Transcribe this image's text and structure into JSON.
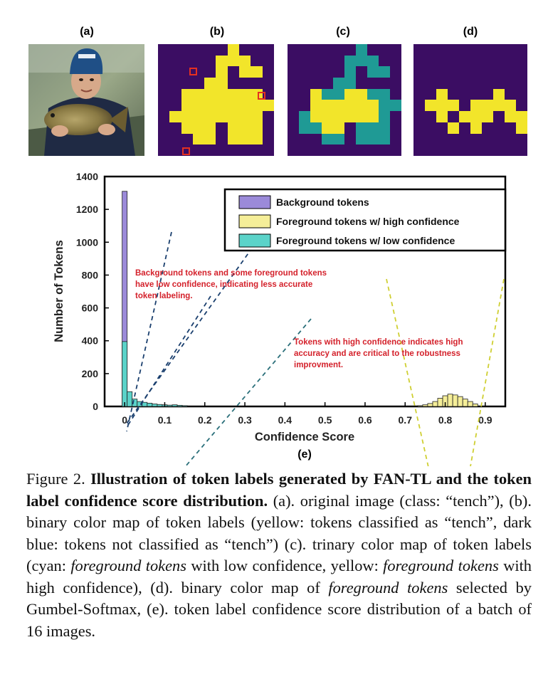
{
  "panels": {
    "a": "(a)",
    "b": "(b)",
    "c": "(c)",
    "d": "(d)",
    "e": "(e)"
  },
  "colors": {
    "background_token": "#3b0d63",
    "foreground_high": "#f2e52a",
    "foreground_low": "#1f9a95",
    "marker_red": "#e53020",
    "annotation_red": "#d4212b",
    "bar_purple": "#9b8ad9",
    "bar_yellow": "#f5ee98",
    "bar_teal": "#5bd3c9"
  },
  "token_maps": {
    "b": [
      "0000001000",
      "0000011100",
      "0000010110",
      "0000110000",
      "0011111110",
      "0011111111",
      "0111111110",
      "0011101110",
      "0001101110",
      "0000000000"
    ],
    "c": [
      "0000002000",
      "0000022200",
      "0000020220",
      "0000220000",
      "0012211220",
      "0011111122",
      "0211111120",
      "0221102220",
      "0002202220",
      "0000000000"
    ],
    "d": [
      "0000000000",
      "0000000000",
      "0000000000",
      "0000000000",
      "0010000100",
      "0111011110",
      "0010111011",
      "0001010001",
      "0000000000",
      "0000000000"
    ]
  },
  "chart_data": {
    "type": "bar",
    "xlabel": "Confidence Score",
    "ylabel": "Number of Tokens",
    "xlim": [
      -0.05,
      0.95
    ],
    "ylim": [
      0,
      1400
    ],
    "xticks": [
      "0",
      "0.1",
      "0.2",
      "0.3",
      "0.4",
      "0.5",
      "0.6",
      "0.7",
      "0.8",
      "0.9"
    ],
    "yticks": [
      "0",
      "200",
      "400",
      "600",
      "800",
      "1000",
      "1200",
      "1400"
    ],
    "bin_width": 0.0125,
    "legend_position": "top-right",
    "series": [
      {
        "name": "Background tokens",
        "x": [
          0.0
        ],
        "values": [
          1310
        ]
      },
      {
        "name": "Foreground tokens w/ high confidence",
        "x": [
          0.7375,
          0.75,
          0.7625,
          0.775,
          0.7875,
          0.8,
          0.8125,
          0.825,
          0.8375,
          0.85,
          0.8625,
          0.875
        ],
        "values": [
          5,
          10,
          18,
          30,
          50,
          65,
          75,
          70,
          60,
          45,
          30,
          15
        ]
      },
      {
        "name": "Foreground tokens w/ low confidence",
        "x": [
          0.0,
          0.0125,
          0.025,
          0.0375,
          0.05,
          0.0625,
          0.075,
          0.0875,
          0.1,
          0.1125,
          0.125,
          0.1375,
          0.15
        ],
        "values": [
          395,
          90,
          45,
          30,
          25,
          20,
          15,
          12,
          10,
          8,
          10,
          7,
          5
        ]
      }
    ],
    "annotations": [
      "Background tokens and some foreground tokens have low confidence, indicating less accurate token labeling.",
      "Tokens with high confidence indicates high accuracy and are critical to the robustness improvment."
    ]
  },
  "caption": {
    "prefix": "Figure 2.",
    "bold": "Illustration of token labels generated by FAN-TL and the token label confidence score distribution.",
    "parts": [
      {
        "t": " (a). original image (class: “tench”), (b). binary color map of token labels (yellow: tokens classified as “tench”, dark blue: tokens not classified as “tench”) (c). trinary color map of token labels (cyan: ",
        "i": false
      },
      {
        "t": "foreground tokens",
        "i": true
      },
      {
        "t": " with low confidence, yellow: ",
        "i": false
      },
      {
        "t": "foreground tokens",
        "i": true
      },
      {
        "t": " with high confidence), (d). binary color map of ",
        "i": false
      },
      {
        "t": "foreground tokens",
        "i": true
      },
      {
        "t": " selected by Gumbel-Softmax, (e). token label confidence score distribution of a batch of 16 images.",
        "i": false
      }
    ]
  }
}
